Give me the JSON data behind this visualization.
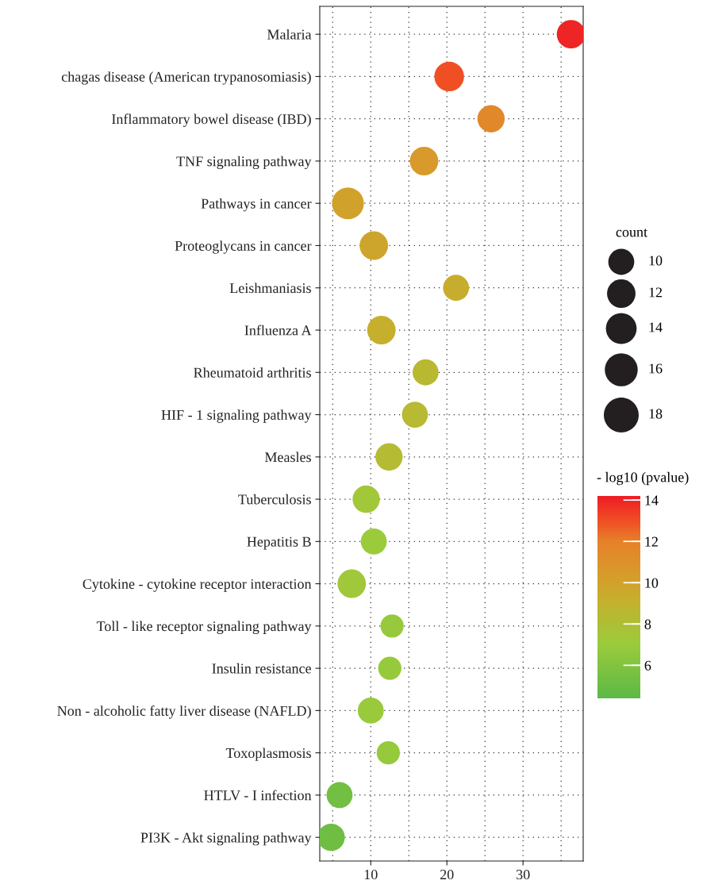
{
  "chart_data": {
    "type": "bubble",
    "categories": [
      "Malaria",
      "chagas disease (American trypanosomiasis)",
      "Inflammatory bowel disease (IBD)",
      "TNF signaling pathway",
      "Pathways in cancer",
      "Proteoglycans in cancer",
      "Leishmaniasis",
      "Influenza A",
      "Rheumatoid arthritis",
      "HIF - 1 signaling pathway",
      "Measles",
      "Tuberculosis",
      "Hepatitis B",
      "Cytokine - cytokine receptor interaction",
      "Toll - like receptor signaling pathway",
      "Insulin resistance",
      "Non - alcoholic fatty liver disease (NAFLD)",
      "Toxoplasmosis",
      "HTLV - I infection",
      "PI3K - Akt signaling pathway"
    ],
    "orientation": "horizontal",
    "values": [
      36.3,
      20.3,
      25.8,
      17.0,
      7.0,
      10.4,
      21.2,
      11.4,
      17.2,
      15.8,
      12.4,
      9.4,
      10.4,
      7.5,
      12.8,
      12.5,
      10.0,
      12.3,
      5.9,
      4.8
    ],
    "sizes": [
      12,
      13,
      11,
      12,
      15,
      12,
      10,
      12,
      10,
      10,
      11,
      11,
      10,
      12,
      8,
      8,
      10,
      8,
      10,
      11
    ],
    "size_legend": [
      10,
      12,
      14,
      16,
      18
    ],
    "legend_title": "count",
    "cvalues": [
      14.0,
      13.0,
      11.5,
      10.5,
      10.0,
      9.8,
      9.3,
      9.2,
      8.5,
      8.4,
      8.3,
      7.3,
      7.0,
      7.2,
      6.8,
      6.8,
      6.9,
      6.8,
      5.3,
      5.2
    ],
    "clabel": "- log10 (pvalue)",
    "clim": [
      4.4,
      14.2
    ],
    "cticks": [
      6,
      8,
      10,
      12,
      14
    ],
    "xlim": [
      3.3,
      37.9
    ],
    "xticks": [
      10,
      20,
      30
    ],
    "grid": true
  }
}
